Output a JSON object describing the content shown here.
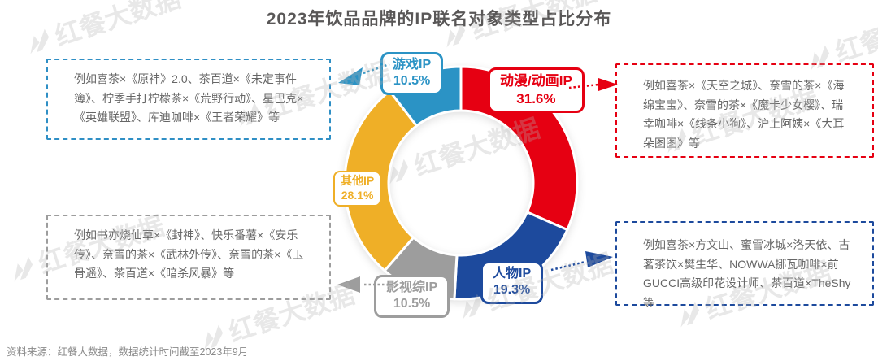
{
  "title": "2023年饮品品牌的IP联名对象类型占比分布",
  "source_note": "资料来源：红餐大数据，数据统计时间截至2023年9月",
  "watermark": "红餐大数据",
  "colors": {
    "anime": "#e60012",
    "person": "#1d4a9d",
    "tv": "#9d9d9d",
    "other": "#efaf27",
    "game": "#2b93c5",
    "title_text": "#595757",
    "body_text": "#666666",
    "source_text": "#8a8a8a",
    "game_box_border": "#2f8fc5"
  },
  "chart_data": {
    "type": "pie",
    "subtype": "donut",
    "title": "2023年饮品品牌的IP联名对象类型占比分布",
    "start_angle": "top",
    "direction": "clockwise",
    "inner_radius_ratio": 0.62,
    "segments": [
      {
        "label": "动漫/动画IP",
        "value": 31.6,
        "pct": "31.6%",
        "color": "#e60012"
      },
      {
        "label": "人物IP",
        "value": 19.3,
        "pct": "19.3%",
        "color": "#1d4a9d"
      },
      {
        "label": "影视综IP",
        "value": 10.5,
        "pct": "10.5%",
        "color": "#9d9d9d"
      },
      {
        "label": "其他IP",
        "value": 28.1,
        "pct": "28.1%",
        "color": "#efaf27"
      },
      {
        "label": "游戏IP",
        "value": 10.5,
        "pct": "10.5%",
        "color": "#2b93c5"
      }
    ]
  },
  "example_boxes": {
    "game": "例如喜茶×《原神》2.0、茶百道×《未定事件簿》、柠季手打柠檬茶×《荒野行动》、星巴克×《英雄联盟》、库迪咖啡×《王者荣耀》等",
    "anime": "例如喜茶×《天空之城》、奈雪的茶×《海绵宝宝》、奈雪的茶×《魔卡少女樱》、瑞幸咖啡×《线条小狗》、沪上阿姨×《大耳朵图图》等",
    "tv": "例如书亦烧仙草×《封神》、快乐番薯×《安乐传》、奈雪的茶×《武林外传》、奈雪的茶×《玉骨遥》、茶百道×《暗杀风暴》等",
    "person": "例如喜茶×方文山、蜜雪冰城×洛天依、古茗茶饮×樊生华、NOWWA挪瓦咖啡×前GUCCI高级印花设计师、茶百道×TheShy等"
  }
}
